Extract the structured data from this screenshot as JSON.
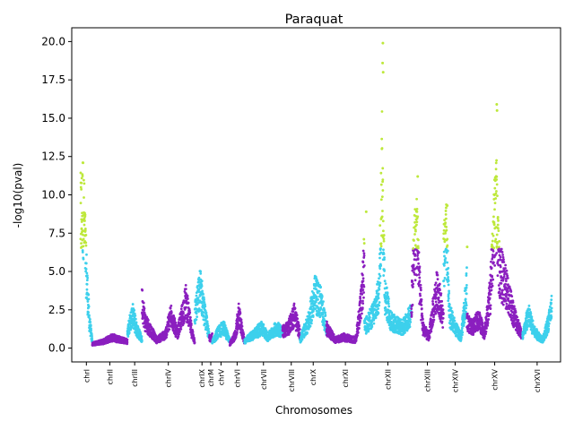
{
  "chart_data": {
    "type": "scatter",
    "title": "Paraquat",
    "xlabel": "Chromosomes",
    "ylabel": "-log10(pval)",
    "ylim": [
      -0.9,
      20.9
    ],
    "yticks": [
      "0.0",
      "2.5",
      "5.0",
      "7.5",
      "10.0",
      "12.5",
      "15.0",
      "17.5",
      "20.0"
    ],
    "x_categories": [
      "chrI",
      "chrII",
      "chrIII",
      "chrIV",
      "chrIX",
      "chrM",
      "chrV",
      "chrVI",
      "chrVII",
      "chrVIII",
      "chrX",
      "chrXI",
      "chrXII",
      "chrXIII",
      "chrXIV",
      "chrXV",
      "chrXVI"
    ],
    "grid": false,
    "legend": "none",
    "colors": {
      "cyan": "#3dd0ec",
      "purple": "#8b1fbf",
      "lime": "#bde83a"
    },
    "significance_threshold": 6.5,
    "chromosomes": [
      {
        "name": "chrI",
        "color": "cyan",
        "start": 0,
        "end": 4,
        "profile": [
          [
            0,
            9.5
          ],
          [
            1,
            10.5
          ],
          [
            2,
            5.5
          ],
          [
            3,
            2.0
          ],
          [
            4,
            0.5
          ]
        ]
      },
      {
        "name": "chrII",
        "color": "purple",
        "start": 4,
        "end": 16,
        "profile": [
          [
            4,
            0.3
          ],
          [
            8,
            0.5
          ],
          [
            11,
            0.8
          ],
          [
            14,
            0.6
          ],
          [
            16,
            0.5
          ]
        ]
      },
      {
        "name": "chrIII",
        "color": "cyan",
        "start": 16,
        "end": 21,
        "profile": [
          [
            16,
            1.0
          ],
          [
            17,
            2.0
          ],
          [
            18,
            2.5
          ],
          [
            19,
            1.5
          ],
          [
            21,
            0.6
          ]
        ]
      },
      {
        "name": "chrIV",
        "color": "purple",
        "start": 21,
        "end": 39,
        "profile": [
          [
            21,
            3.5
          ],
          [
            22,
            2.0
          ],
          [
            26,
            0.6
          ],
          [
            29,
            1.0
          ],
          [
            31,
            2.5
          ],
          [
            33,
            1.0
          ],
          [
            36,
            3.5
          ],
          [
            38,
            1.2
          ],
          [
            39,
            0.5
          ]
        ]
      },
      {
        "name": "chrIX",
        "color": "cyan",
        "start": 39,
        "end": 44,
        "profile": [
          [
            39,
            2.5
          ],
          [
            41,
            4.5
          ],
          [
            42,
            3.0
          ],
          [
            44,
            0.8
          ]
        ]
      },
      {
        "name": "chrM",
        "color": "purple",
        "start": 44,
        "end": 45,
        "profile": [
          [
            44,
            0.8
          ],
          [
            45,
            0.8
          ]
        ]
      },
      {
        "name": "chrV",
        "color": "cyan",
        "start": 45,
        "end": 51,
        "profile": [
          [
            45,
            0.4
          ],
          [
            47,
            1.2
          ],
          [
            49,
            1.5
          ],
          [
            51,
            0.5
          ]
        ]
      },
      {
        "name": "chrVI",
        "color": "purple",
        "start": 51,
        "end": 56,
        "profile": [
          [
            51,
            0.3
          ],
          [
            53,
            1.0
          ],
          [
            54,
            2.5
          ],
          [
            56,
            0.5
          ]
        ]
      },
      {
        "name": "chrVII",
        "color": "cyan",
        "start": 56,
        "end": 69,
        "profile": [
          [
            56,
            0.5
          ],
          [
            59,
            1.0
          ],
          [
            62,
            1.5
          ],
          [
            64,
            0.8
          ],
          [
            67,
            1.5
          ],
          [
            69,
            1.2
          ]
        ]
      },
      {
        "name": "chrVIII",
        "color": "purple",
        "start": 69,
        "end": 75,
        "profile": [
          [
            69,
            1.2
          ],
          [
            71,
            1.5
          ],
          [
            73,
            2.5
          ],
          [
            75,
            1.0
          ]
        ]
      },
      {
        "name": "chrX",
        "color": "cyan",
        "start": 75,
        "end": 84,
        "profile": [
          [
            75,
            0.6
          ],
          [
            78,
            2.0
          ],
          [
            80,
            4.0
          ],
          [
            82,
            3.5
          ],
          [
            84,
            1.5
          ]
        ]
      },
      {
        "name": "chrXI",
        "color": "purple",
        "start": 84,
        "end": 97,
        "profile": [
          [
            84,
            1.5
          ],
          [
            87,
            0.6
          ],
          [
            90,
            0.8
          ],
          [
            94,
            0.6
          ],
          [
            96,
            3.5
          ],
          [
            97,
            6.5
          ]
        ]
      },
      {
        "name": "chrXII",
        "color": "cyan",
        "start": 97,
        "end": 113,
        "profile": [
          [
            97,
            1.5
          ],
          [
            100,
            2.5
          ],
          [
            102,
            4.0
          ],
          [
            103,
            13.0
          ],
          [
            104,
            4.0
          ],
          [
            106,
            2.0
          ],
          [
            110,
            1.5
          ],
          [
            113,
            2.5
          ]
        ]
      },
      {
        "name": "chrXIII",
        "color": "purple",
        "start": 113,
        "end": 124,
        "profile": [
          [
            113,
            3.0
          ],
          [
            114,
            7.5
          ],
          [
            115,
            8.5
          ],
          [
            116,
            4.0
          ],
          [
            117,
            1.5
          ],
          [
            119,
            0.8
          ],
          [
            121,
            3.5
          ],
          [
            122,
            4.5
          ],
          [
            124,
            2.0
          ]
        ]
      },
      {
        "name": "chrXIV",
        "color": "cyan",
        "start": 124,
        "end": 132,
        "profile": [
          [
            124,
            6.5
          ],
          [
            125,
            8.0
          ],
          [
            126,
            2.5
          ],
          [
            128,
            1.5
          ],
          [
            130,
            0.8
          ],
          [
            132,
            4.5
          ]
        ]
      },
      {
        "name": "chrXV",
        "color": "purple",
        "start": 132,
        "end": 151,
        "profile": [
          [
            132,
            2.0
          ],
          [
            134,
            1.5
          ],
          [
            136,
            2.2
          ],
          [
            138,
            1.0
          ],
          [
            140,
            4.0
          ],
          [
            141,
            8.0
          ],
          [
            142,
            11.0
          ],
          [
            143,
            6.0
          ],
          [
            146,
            4.0
          ],
          [
            148,
            2.5
          ],
          [
            151,
            0.8
          ]
        ]
      },
      {
        "name": "chrXVI",
        "color": "cyan",
        "start": 151,
        "end": 161,
        "profile": [
          [
            151,
            0.8
          ],
          [
            153,
            2.5
          ],
          [
            155,
            1.2
          ],
          [
            158,
            0.6
          ],
          [
            160,
            2.0
          ],
          [
            161,
            3.0
          ]
        ]
      }
    ],
    "peaks": [
      {
        "x": 0.8,
        "y": 12.1
      },
      {
        "x": 103.3,
        "y": 19.9
      },
      {
        "x": 103.2,
        "y": 18.6
      },
      {
        "x": 103.4,
        "y": 18.0
      },
      {
        "x": 115.2,
        "y": 11.2
      },
      {
        "x": 125.3,
        "y": 9.3
      },
      {
        "x": 142.2,
        "y": 15.9
      },
      {
        "x": 142.3,
        "y": 15.5
      },
      {
        "x": 97.6,
        "y": 8.9
      },
      {
        "x": 132.1,
        "y": 6.6
      }
    ]
  }
}
